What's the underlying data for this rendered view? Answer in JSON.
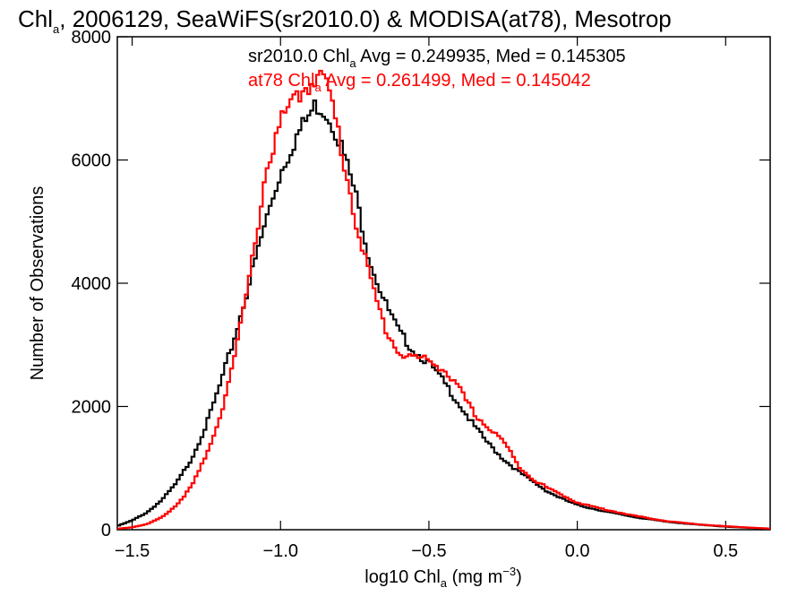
{
  "chart_data": {
    "type": "line",
    "title": "Chl",
    "title_subscript": "a",
    "title_rest": ", 2006129, SeaWiFS(sr2010.0) & MODISA(at78), Mesotrop",
    "xlabel_pre": "log10 Chl",
    "xlabel_sub": "a",
    "xlabel_mid": " (mg m",
    "xlabel_sup": "−3",
    "xlabel_post": ")",
    "ylabel": "Number of Observations",
    "xlim": [
      -1.55,
      0.65
    ],
    "ylim": [
      0,
      8000
    ],
    "x_ticks": [
      -1.5,
      -1.0,
      -0.5,
      0.0,
      0.5
    ],
    "x_tick_labels": [
      "−1.5",
      "−1.0",
      "−0.5",
      "0.0",
      "0.5"
    ],
    "y_ticks": [
      0,
      2000,
      4000,
      6000,
      8000
    ],
    "y_tick_labels": [
      "0",
      "2000",
      "4000",
      "6000",
      "8000"
    ],
    "grid": false,
    "legend_placement": "top-right",
    "series": [
      {
        "name": "sr2010.0",
        "color": "#000000",
        "legend_pre": "sr2010.0 Chl",
        "legend_sub": "a",
        "legend_post": " Avg = 0.249935, Med = 0.145305",
        "x": [
          -1.55,
          -1.5,
          -1.45,
          -1.4,
          -1.35,
          -1.3,
          -1.25,
          -1.2,
          -1.15,
          -1.1,
          -1.05,
          -1.0,
          -0.95,
          -0.9,
          -0.88,
          -0.85,
          -0.82,
          -0.8,
          -0.75,
          -0.7,
          -0.65,
          -0.6,
          -0.55,
          -0.5,
          -0.45,
          -0.4,
          -0.35,
          -0.3,
          -0.25,
          -0.2,
          -0.15,
          -0.1,
          -0.05,
          0.0,
          0.1,
          0.2,
          0.3,
          0.4,
          0.5,
          0.6,
          0.65
        ],
        "y": [
          60,
          150,
          280,
          480,
          760,
          1150,
          1700,
          2400,
          3200,
          4100,
          5000,
          5800,
          6350,
          6750,
          6900,
          6800,
          6550,
          6300,
          5500,
          4400,
          3700,
          3200,
          2900,
          2700,
          2400,
          2050,
          1700,
          1400,
          1150,
          950,
          780,
          620,
          500,
          400,
          290,
          200,
          130,
          85,
          50,
          25,
          15
        ]
      },
      {
        "name": "at78",
        "color": "#ff0000",
        "legend_pre": "at78 Chl",
        "legend_sub": "a",
        "legend_post": " Avg = 0.261499, Med = 0.145042",
        "x": [
          -1.55,
          -1.5,
          -1.45,
          -1.4,
          -1.35,
          -1.3,
          -1.25,
          -1.2,
          -1.15,
          -1.1,
          -1.05,
          -1.0,
          -0.95,
          -0.9,
          -0.88,
          -0.85,
          -0.82,
          -0.8,
          -0.75,
          -0.7,
          -0.65,
          -0.6,
          -0.55,
          -0.5,
          -0.45,
          -0.4,
          -0.35,
          -0.3,
          -0.25,
          -0.2,
          -0.15,
          -0.1,
          -0.05,
          0.0,
          0.1,
          0.2,
          0.3,
          0.4,
          0.5,
          0.6,
          0.65
        ],
        "y": [
          15,
          40,
          90,
          200,
          400,
          700,
          1200,
          1900,
          2900,
          4200,
          5800,
          6600,
          7000,
          7250,
          7400,
          7300,
          6800,
          6300,
          5100,
          4100,
          3300,
          2850,
          2800,
          2750,
          2600,
          2300,
          1900,
          1650,
          1450,
          1050,
          820,
          680,
          560,
          440,
          320,
          220,
          140,
          90,
          55,
          30,
          18
        ]
      }
    ]
  }
}
